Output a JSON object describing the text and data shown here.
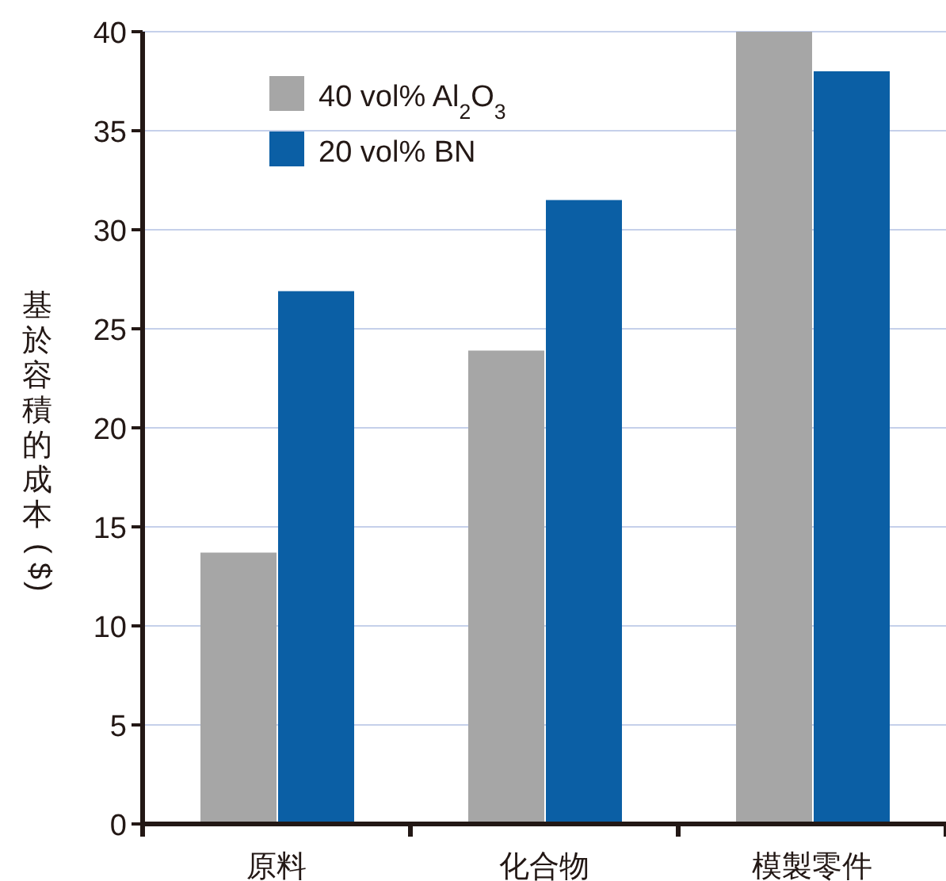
{
  "chart_data": {
    "type": "bar",
    "ylabel": "基於容積的成本 ($)",
    "categories": [
      "原料",
      "化合物",
      "模製零件"
    ],
    "series": [
      {
        "name": "40 vol% Al$_{2}$O$_{3}$",
        "color": "#a6a6a6",
        "values": [
          13.7,
          23.9,
          40
        ]
      },
      {
        "name": "20 vol% BN",
        "color": "#0b5fa5",
        "values": [
          26.9,
          31.5,
          38
        ]
      }
    ],
    "ylim": [
      0,
      40
    ],
    "yticks": [
      0,
      5,
      10,
      15,
      20,
      25,
      30,
      35,
      40
    ],
    "grid": "y",
    "legend": "top left"
  }
}
